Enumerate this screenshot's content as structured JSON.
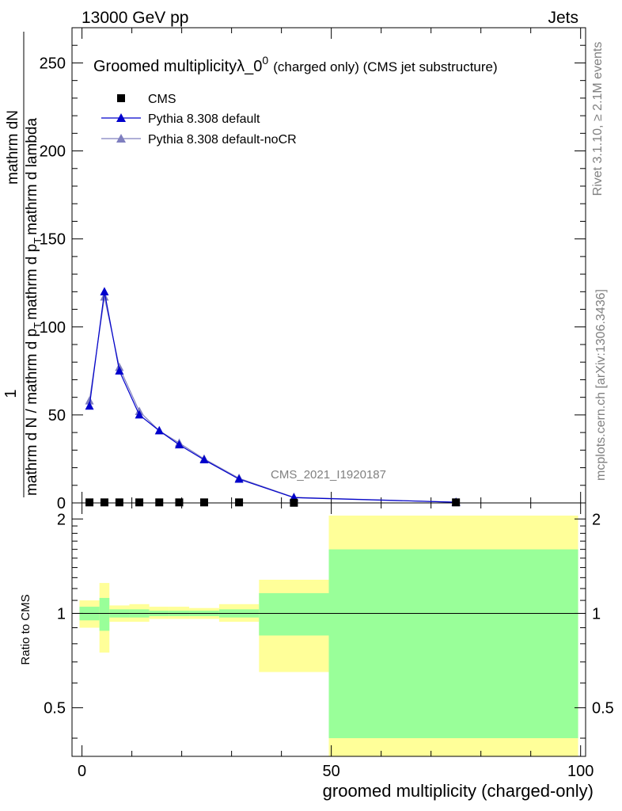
{
  "header": {
    "energy": "13000 GeV pp",
    "category": "Jets"
  },
  "side_labels": {
    "rivet": "Rivet 3.1.10, ≥ 2.1M events",
    "mcplots": "mcplots.cern.ch [arXiv:1306.3436]"
  },
  "chart_data": [
    {
      "type": "line",
      "title_main": "Groomed multiplicityλ_0",
      "title_sup": "0",
      "title_suffix": "(charged only) (CMS jet substructure)",
      "ylabel_num": "mathrm dN",
      "ylabel_den1": "mathrm d N / mathrm d p",
      "ylabel_den1_sub": "T",
      "ylabel_den2": "mathrm d p",
      "ylabel_den2_sub": "T",
      "ylabel_den3": "mathrm d lambda",
      "ylabel_one": "1",
      "watermark": "CMS_2021_I1920187",
      "xlim": [
        -2,
        101
      ],
      "ylim": [
        0,
        270
      ],
      "yticks": [
        0,
        50,
        100,
        150,
        200,
        250
      ],
      "ytick_labels": [
        "0",
        "50",
        "100",
        "150",
        "200",
        "250"
      ],
      "legend_placement": "top-left",
      "series": [
        {
          "name": "CMS",
          "marker": "square",
          "color": "#000000",
          "x": [
            1.5,
            4.5,
            7.5,
            11.5,
            15.5,
            19.5,
            24.5,
            31.5,
            42.5,
            75
          ],
          "y": [
            0.3,
            0.3,
            0.3,
            0.3,
            0.3,
            0.3,
            0.3,
            0.3,
            0.1,
            0.3
          ]
        },
        {
          "name": "Pythia 8.308 default",
          "marker": "triangle",
          "color": "#0000cc",
          "x": [
            1.5,
            4.5,
            7.5,
            11.5,
            15.5,
            19.5,
            24.5,
            31.5,
            42.5,
            75
          ],
          "y": [
            55,
            120,
            75,
            50,
            41,
            33,
            24.5,
            13.5,
            3,
            0.4
          ]
        },
        {
          "name": "Pythia 8.308 default-noCR",
          "marker": "triangle",
          "color": "#7f7fbf",
          "x": [
            1.5,
            4.5,
            7.5,
            11.5,
            15.5,
            19.5,
            24.5,
            31.5,
            42.5,
            75
          ],
          "y": [
            58,
            117,
            77,
            52,
            41,
            34,
            25,
            14,
            3.2,
            0.4
          ]
        }
      ]
    },
    {
      "type": "area",
      "ylabel": "Ratio to CMS",
      "xlabel": "groomed multiplicity (charged-only)",
      "xlim": [
        -2,
        101
      ],
      "xticks": [
        0,
        50,
        100
      ],
      "xtick_labels": [
        "0",
        "50",
        "100"
      ],
      "ylim": [
        0.35,
        2.25
      ],
      "yticks": [
        0.5,
        1,
        2
      ],
      "ytick_labels": [
        "0.5",
        "1",
        "2"
      ],
      "reference_line": 1,
      "bins": [
        {
          "x0": -0.5,
          "x1": 3.5,
          "inner": [
            0.95,
            1.05
          ],
          "outer": [
            0.9,
            1.1
          ]
        },
        {
          "x0": 3.5,
          "x1": 5.5,
          "inner": [
            0.88,
            1.12
          ],
          "outer": [
            0.75,
            1.25
          ]
        },
        {
          "x0": 5.5,
          "x1": 9.5,
          "inner": [
            0.97,
            1.03
          ],
          "outer": [
            0.94,
            1.06
          ]
        },
        {
          "x0": 9.5,
          "x1": 13.5,
          "inner": [
            0.97,
            1.03
          ],
          "outer": [
            0.94,
            1.07
          ]
        },
        {
          "x0": 13.5,
          "x1": 17.5,
          "inner": [
            0.98,
            1.02
          ],
          "outer": [
            0.96,
            1.05
          ]
        },
        {
          "x0": 17.5,
          "x1": 21.5,
          "inner": [
            0.98,
            1.02
          ],
          "outer": [
            0.96,
            1.05
          ]
        },
        {
          "x0": 21.5,
          "x1": 27.5,
          "inner": [
            0.98,
            1.02
          ],
          "outer": [
            0.96,
            1.04
          ]
        },
        {
          "x0": 27.5,
          "x1": 35.5,
          "inner": [
            0.97,
            1.03
          ],
          "outer": [
            0.94,
            1.07
          ]
        },
        {
          "x0": 35.5,
          "x1": 49.5,
          "inner": [
            0.85,
            1.16
          ],
          "outer": [
            0.65,
            1.28
          ]
        },
        {
          "x0": 49.5,
          "x1": 99.5,
          "inner": [
            0.4,
            1.6
          ],
          "outer": [
            0.35,
            2.05
          ]
        }
      ],
      "inner_color": "#99ff99",
      "outer_color": "#ffff99"
    }
  ]
}
